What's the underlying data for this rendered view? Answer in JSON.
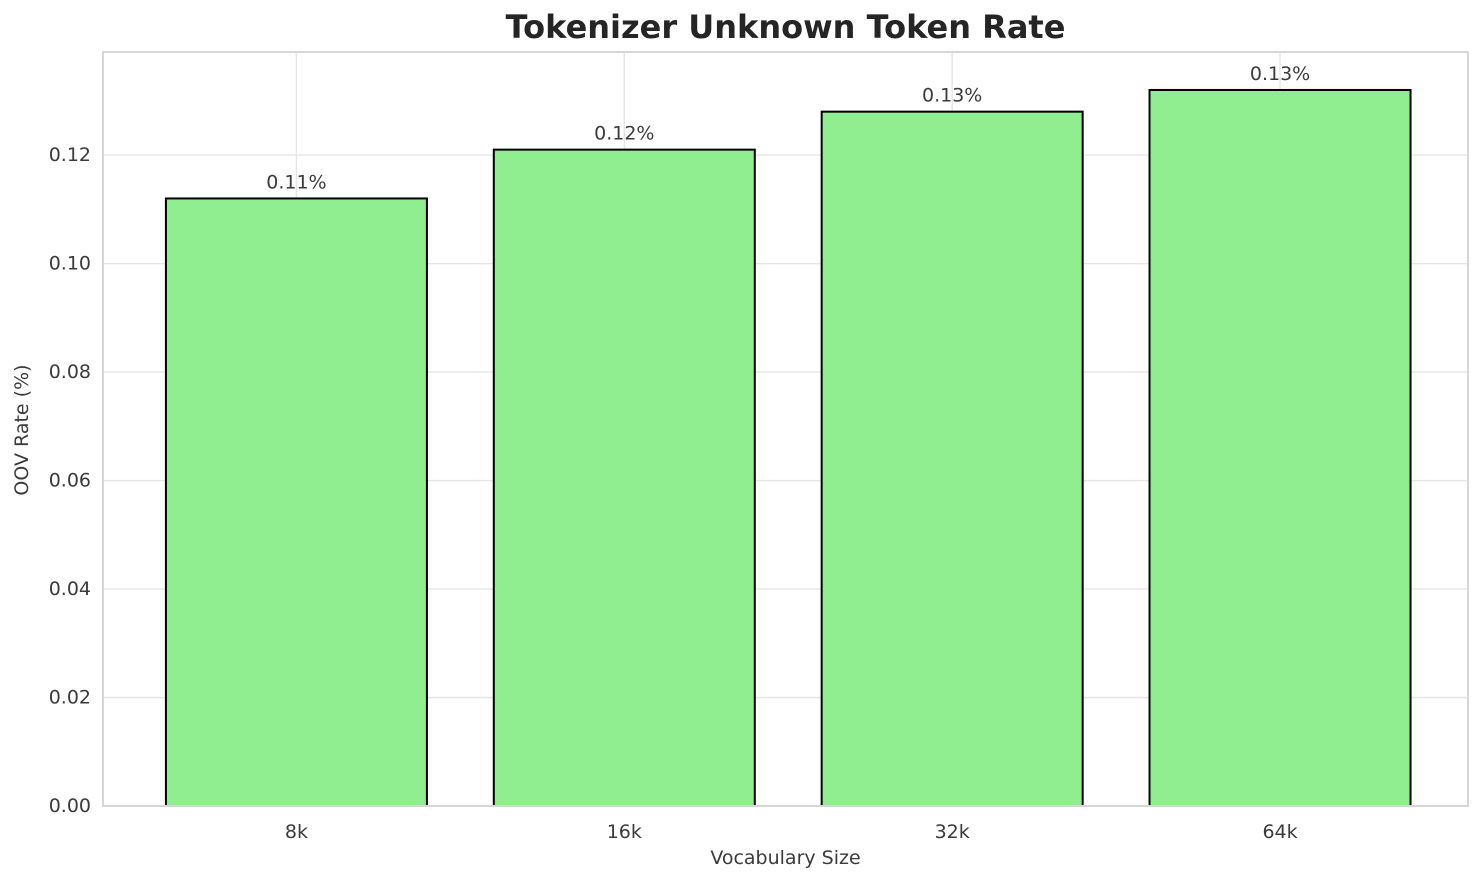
{
  "title": "Tokenizer Unknown Token Rate",
  "chart_data": {
    "type": "bar",
    "title": "Tokenizer Unknown Token Rate",
    "xlabel": "Vocabulary Size",
    "ylabel": "OOV Rate (%)",
    "categories": [
      "8k",
      "16k",
      "32k",
      "64k"
    ],
    "values": [
      0.112,
      0.121,
      0.128,
      0.132
    ],
    "bar_labels": [
      "0.11%",
      "0.12%",
      "0.13%",
      "0.13%"
    ],
    "ytick_labels": [
      "0.00",
      "0.02",
      "0.04",
      "0.06",
      "0.08",
      "0.10",
      "0.12"
    ],
    "yticks": [
      0.0,
      0.02,
      0.04,
      0.06,
      0.08,
      0.1,
      0.12
    ],
    "ylim": [
      0,
      0.139
    ],
    "grid": true,
    "legend_position": "none",
    "colors": {
      "bar_fill": "#90EE90",
      "bar_edge": "#000000",
      "grid": "#E5E5E5",
      "spine": "#D6D6D6",
      "title_text": "#252525",
      "tick_text": "#3B3B3B",
      "background": "#FFFFFF"
    }
  }
}
